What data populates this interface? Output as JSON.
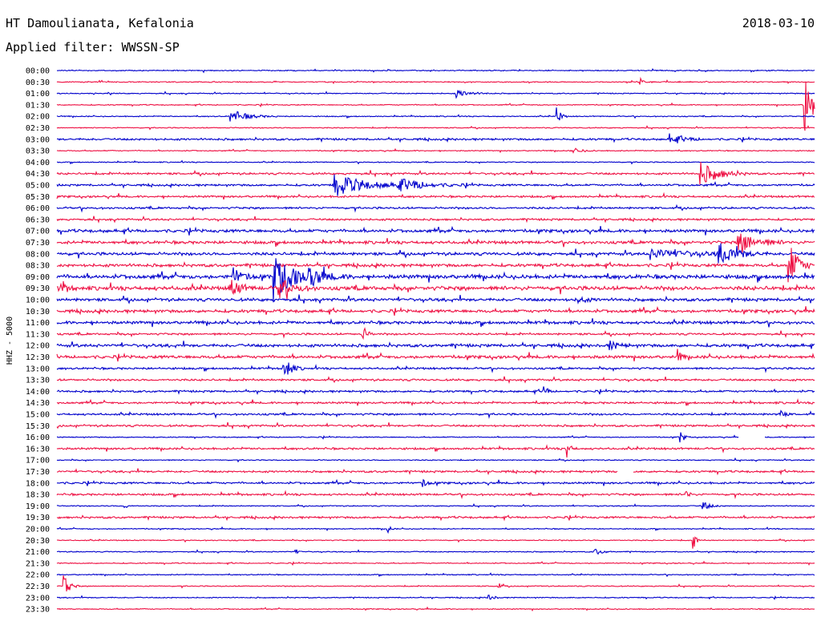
{
  "header": {
    "station": "HT Damoulianata, Kefalonia",
    "date": "2018-03-10",
    "filter_prefix": "Applied filter:",
    "filter_name": "WWSSN-SP"
  },
  "chart_data": {
    "type": "line",
    "title": "HT Damoulianata, Kefalonia",
    "ylabel": "HHZ - 5000",
    "row_labels": [
      "00:00",
      "00:30",
      "01:00",
      "01:30",
      "02:00",
      "02:30",
      "03:00",
      "03:30",
      "04:00",
      "04:30",
      "05:00",
      "05:30",
      "06:00",
      "06:30",
      "07:00",
      "07:30",
      "08:00",
      "08:30",
      "09:00",
      "09:30",
      "10:00",
      "10:30",
      "11:00",
      "11:30",
      "12:00",
      "12:30",
      "13:00",
      "13:30",
      "14:00",
      "14:30",
      "15:00",
      "15:30",
      "16:00",
      "16:30",
      "17:00",
      "17:30",
      "18:00",
      "18:30",
      "19:00",
      "19:30",
      "20:00",
      "20:30",
      "21:00",
      "21:30",
      "22:00",
      "22:30",
      "23:00",
      "23:30"
    ],
    "minutes_per_row": 30,
    "series_colors": [
      "#0000cc",
      "#ee1144"
    ],
    "noise_level": [
      1,
      1,
      1,
      1,
      1,
      1,
      2,
      1,
      1,
      2,
      2,
      2,
      2,
      2,
      3,
      3,
      3,
      3,
      4,
      4,
      3,
      3,
      3,
      2,
      3,
      3,
      2,
      2,
      2,
      2,
      2,
      2,
      1,
      2,
      1,
      2,
      2,
      2,
      1,
      2,
      1,
      1,
      1,
      1,
      1,
      1,
      1,
      1
    ],
    "events": [
      {
        "row": 1,
        "minute": 23.1,
        "amplitude": 5,
        "duration": 0.5
      },
      {
        "row": 2,
        "minute": 15.8,
        "amplitude": 5,
        "duration": 1.5
      },
      {
        "row": 3,
        "minute": 29.6,
        "amplitude": 36,
        "duration": 1.2
      },
      {
        "row": 4,
        "minute": 6.9,
        "amplitude": 8,
        "duration": 1.8
      },
      {
        "row": 4,
        "minute": 19.8,
        "amplitude": 14,
        "duration": 0.4
      },
      {
        "row": 6,
        "minute": 24.3,
        "amplitude": 6,
        "duration": 1.5
      },
      {
        "row": 7,
        "minute": 20.4,
        "amplitude": 4,
        "duration": 1
      },
      {
        "row": 9,
        "minute": 25.5,
        "amplitude": 14,
        "duration": 2
      },
      {
        "row": 10,
        "minute": 11.0,
        "amplitude": 14,
        "duration": 3.5
      },
      {
        "row": 10,
        "minute": 13.5,
        "amplitude": 7,
        "duration": 3
      },
      {
        "row": 15,
        "minute": 27.0,
        "amplitude": 14,
        "duration": 2
      },
      {
        "row": 16,
        "minute": 26.2,
        "amplitude": 14,
        "duration": 2
      },
      {
        "row": 16,
        "minute": 23.5,
        "amplitude": 6,
        "duration": 4
      },
      {
        "row": 17,
        "minute": 29.0,
        "amplitude": 28,
        "duration": 1
      },
      {
        "row": 18,
        "minute": 8.6,
        "amplitude": 30,
        "duration": 2
      },
      {
        "row": 18,
        "minute": 9.8,
        "amplitude": 12,
        "duration": 2
      },
      {
        "row": 18,
        "minute": 7.0,
        "amplitude": 10,
        "duration": 1
      },
      {
        "row": 19,
        "minute": 6.9,
        "amplitude": 12,
        "duration": 1
      },
      {
        "row": 19,
        "minute": 8.8,
        "amplitude": 12,
        "duration": 1.5
      },
      {
        "row": 19,
        "minute": 0.1,
        "amplitude": 6,
        "duration": 1
      },
      {
        "row": 20,
        "minute": 20.6,
        "amplitude": 4,
        "duration": 1
      },
      {
        "row": 23,
        "minute": 12.1,
        "amplitude": 10,
        "duration": 0.5
      },
      {
        "row": 24,
        "minute": 21.9,
        "amplitude": 5,
        "duration": 1
      },
      {
        "row": 25,
        "minute": 24.6,
        "amplitude": 8,
        "duration": 0.4
      },
      {
        "row": 26,
        "minute": 9.0,
        "amplitude": 14,
        "duration": 0.8
      },
      {
        "row": 28,
        "minute": 19.3,
        "amplitude": 10,
        "duration": 0.3
      },
      {
        "row": 30,
        "minute": 28.6,
        "amplitude": 6,
        "duration": 0.5
      },
      {
        "row": 32,
        "minute": 24.7,
        "amplitude": 8,
        "duration": 0.4
      },
      {
        "row": 33,
        "minute": 20.2,
        "amplitude": 12,
        "duration": 0.4
      },
      {
        "row": 36,
        "minute": 14.5,
        "amplitude": 5,
        "duration": 0.6
      },
      {
        "row": 37,
        "minute": 24.9,
        "amplitude": 6,
        "duration": 0.4
      },
      {
        "row": 38,
        "minute": 25.6,
        "amplitude": 5,
        "duration": 0.8
      },
      {
        "row": 38,
        "minute": 2.7,
        "amplitude": 3,
        "duration": 0.3
      },
      {
        "row": 40,
        "minute": 13.1,
        "amplitude": 6,
        "duration": 0.3
      },
      {
        "row": 41,
        "minute": 25.2,
        "amplitude": 12,
        "duration": 0.3
      },
      {
        "row": 42,
        "minute": 9.4,
        "amplitude": 5,
        "duration": 0.3
      },
      {
        "row": 42,
        "minute": 21.3,
        "amplitude": 4,
        "duration": 0.8
      },
      {
        "row": 45,
        "minute": 0.3,
        "amplitude": 14,
        "duration": 0.6
      },
      {
        "row": 45,
        "minute": 17.5,
        "amplitude": 5,
        "duration": 0.3
      },
      {
        "row": 46,
        "minute": 17.1,
        "amplitude": 4,
        "duration": 0.6
      }
    ],
    "gaps": [
      {
        "row": 32,
        "minute_start": 27.0,
        "minute_end": 28.0
      },
      {
        "row": 35,
        "minute_start": 22.2,
        "minute_end": 22.8
      }
    ]
  }
}
